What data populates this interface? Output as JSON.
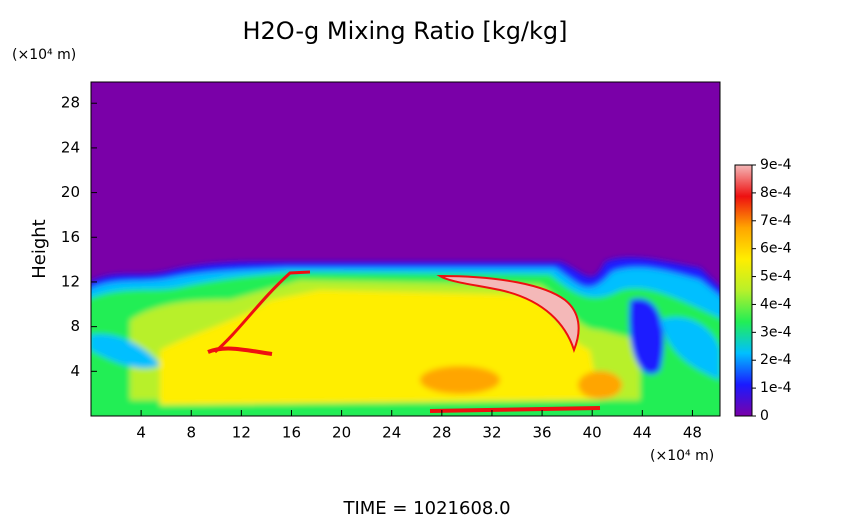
{
  "chart_data": {
    "type": "heatmap",
    "title": "H2O-g Mixing Ratio [kg/kg]",
    "y_label": "Height",
    "y_unit": "(×10⁴ m)",
    "x_unit": "(×10⁴ m)",
    "footer": "TIME = 1021608.0",
    "xlim": [
      0,
      50.2
    ],
    "xticks": [
      4,
      8,
      12,
      16,
      20,
      24,
      28,
      32,
      36,
      40,
      44,
      48
    ],
    "ylim": [
      0,
      29.9
    ],
    "yticks": [
      4,
      8,
      12,
      16,
      20,
      24,
      28
    ],
    "clim": [
      0,
      0.0009
    ],
    "colorscale": [
      "#7a00a8",
      "#1a1aff",
      "#00bfff",
      "#22ee55",
      "#b8f02a",
      "#ffee00",
      "#ffa500",
      "#ee1010",
      "#f4b8b8"
    ],
    "cticks": [
      0,
      {
        "value": 0.0001,
        "label": "1e-4"
      },
      {
        "value": 0.0002,
        "label": "2e-4"
      },
      {
        "value": 0.0003,
        "label": "3e-4"
      },
      {
        "value": 0.0004,
        "label": "4e-4"
      },
      {
        "value": 0.0005,
        "label": "5e-4"
      },
      {
        "value": 0.0006,
        "label": "6e-4"
      },
      {
        "value": 0.0007,
        "label": "7e-4"
      },
      {
        "value": 0.0008,
        "label": "8e-4"
      },
      {
        "value": 0.0009,
        "label": "9e-4"
      }
    ]
  }
}
